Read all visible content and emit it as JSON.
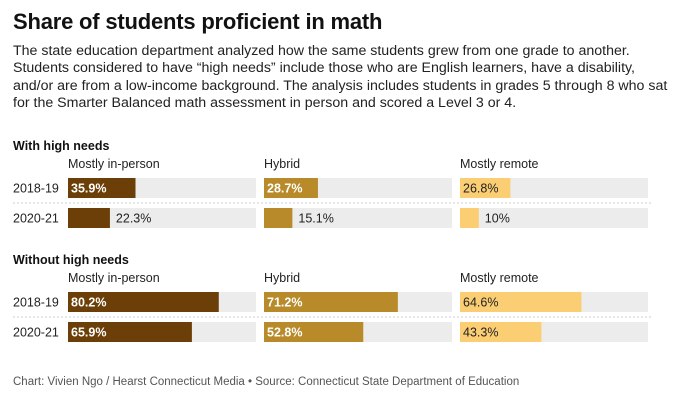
{
  "chart_data": {
    "type": "bar",
    "title": "Share of students proficient in math",
    "subtitle": "The state education department analyzed how the same students grew from one grade to another. Students considered to have “high needs” include those who are English learners, have a disability, and/or are from a low-income background. The analysis includes students in grades 5 through 8 who sat for the Smarter Balanced math assessment in person and scored a Level 3 or 4.",
    "source": "Chart: Vivien Ngo / Hearst Connecticut Media • Source: Connecticut State Department of Education",
    "xlim": [
      0,
      100
    ],
    "categories": [
      "2018-19",
      "2020-21"
    ],
    "columns": [
      {
        "name": "Mostly in-person",
        "color": "#6b3f07"
      },
      {
        "name": "Hybrid",
        "color": "#b88a2a"
      },
      {
        "name": "Mostly remote",
        "color": "#fcce74"
      }
    ],
    "colors": {
      "track": "#ececec",
      "label_light": "#ffffff",
      "label_dark": "#222222"
    },
    "groups": [
      {
        "name": "With high needs",
        "rows": [
          {
            "year": "2018-19",
            "values": [
              35.9,
              28.7,
              26.8
            ],
            "labels": [
              "35.9%",
              "28.7%",
              "26.8%"
            ]
          },
          {
            "year": "2020-21",
            "values": [
              22.3,
              15.1,
              10
            ],
            "labels": [
              "22.3%",
              "15.1%",
              "10%"
            ]
          }
        ]
      },
      {
        "name": "Without high needs",
        "rows": [
          {
            "year": "2018-19",
            "values": [
              80.2,
              71.2,
              64.6
            ],
            "labels": [
              "80.2%",
              "71.2%",
              "64.6%"
            ]
          },
          {
            "year": "2020-21",
            "values": [
              65.9,
              52.8,
              43.3
            ],
            "labels": [
              "65.9%",
              "52.8%",
              "43.3%"
            ]
          }
        ]
      }
    ]
  }
}
